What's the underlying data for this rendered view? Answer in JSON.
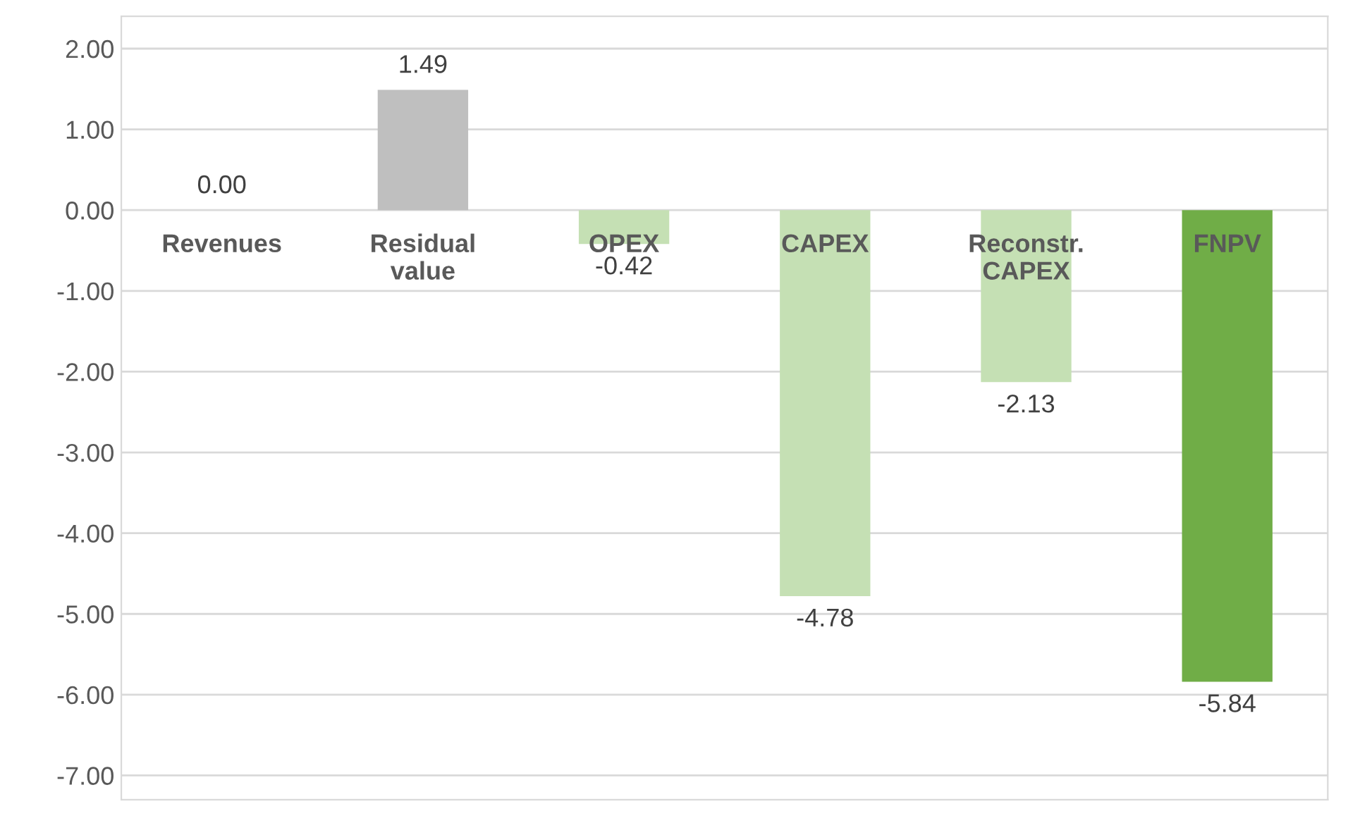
{
  "chart_data": {
    "type": "bar",
    "categories": [
      "Revenues",
      "Residual\nvalue",
      "OPEX",
      "CAPEX",
      "Reconstr.\nCAPEX",
      "FNPV"
    ],
    "values": [
      0.0,
      1.49,
      -0.42,
      -4.78,
      -2.13,
      -5.84
    ],
    "colors": [
      "#bfbfbf",
      "#bfbfbf",
      "#c5e0b4",
      "#c5e0b4",
      "#c5e0b4",
      "#70ad47"
    ],
    "value_labels": [
      "0.00",
      "1.49",
      "-0.42",
      "-4.78",
      "-2.13",
      "-5.84"
    ],
    "ylim": [
      -7.3,
      2.4
    ],
    "yticks": [
      {
        "value": 2,
        "label": "2.00"
      },
      {
        "value": 1,
        "label": "1.00"
      },
      {
        "value": 0,
        "label": "0.00"
      },
      {
        "value": -1,
        "label": "-1.00"
      },
      {
        "value": -2,
        "label": "-2.00"
      },
      {
        "value": -3,
        "label": "-3.00"
      },
      {
        "value": -4,
        "label": "-4.00"
      },
      {
        "value": -5,
        "label": "-5.00"
      },
      {
        "value": -6,
        "label": "-6.00"
      },
      {
        "value": -7,
        "label": "-7.00"
      }
    ],
    "grid": "y",
    "legend": false
  }
}
